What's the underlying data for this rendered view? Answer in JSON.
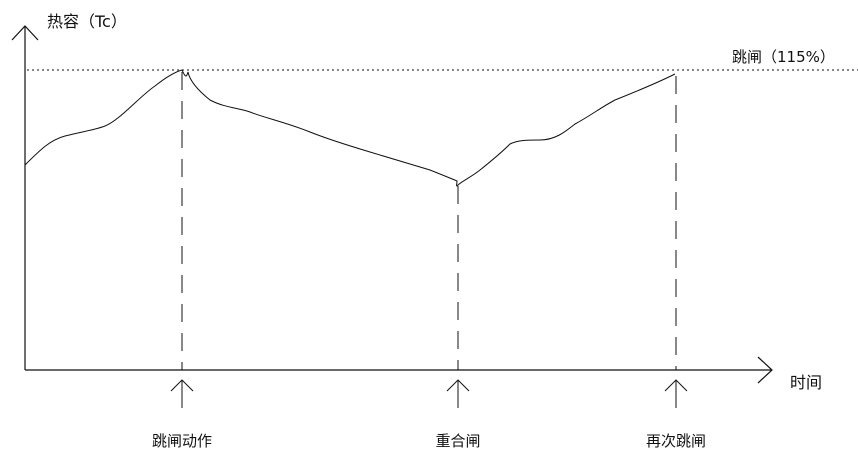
{
  "labels": {
    "y_axis": "热容（Tc）",
    "x_axis": "时间",
    "threshold": "跳闸（115%）",
    "event_trip": "跳闸动作",
    "event_reclose": "重合闸",
    "event_retrip": "再次跳闸"
  },
  "colors": {
    "line": "#111111",
    "background": "#ffffff"
  }
}
